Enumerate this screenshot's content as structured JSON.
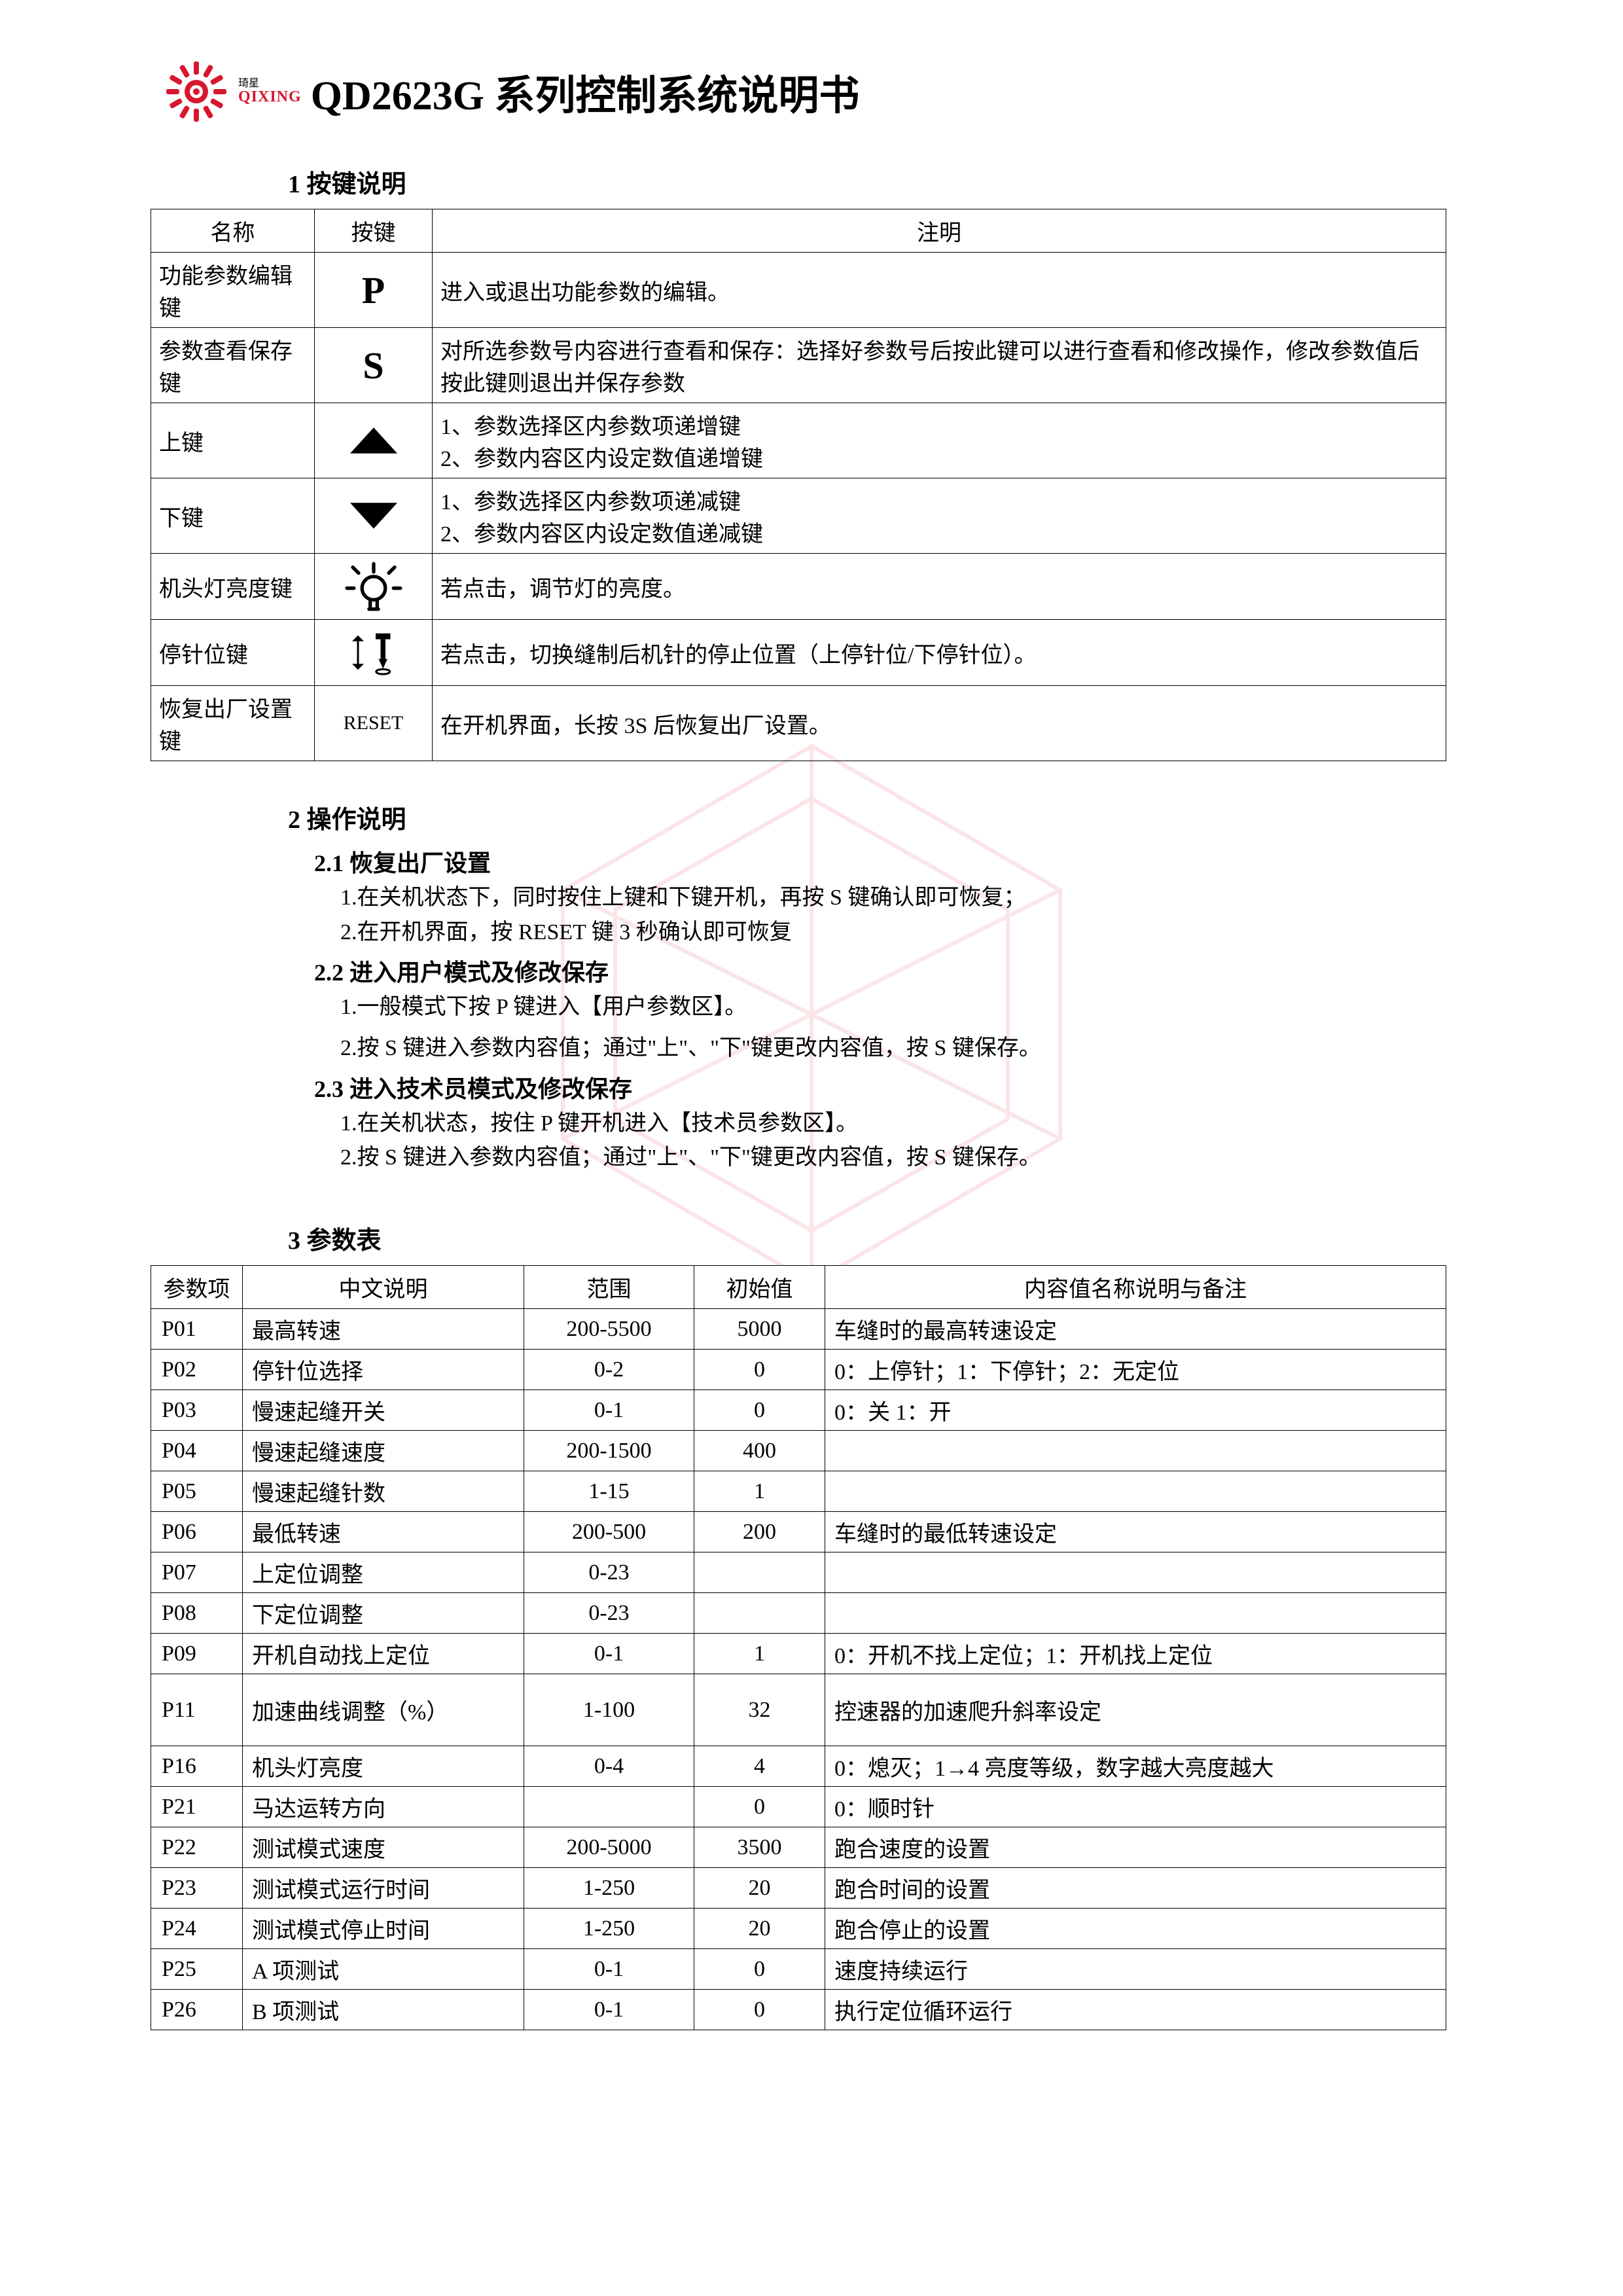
{
  "logo": {
    "cn": "琦星",
    "en": "QIXING",
    "color": "#d7172e"
  },
  "doc_title": "QD2623G 系列控制系统说明书",
  "section1": {
    "heading": "1 按键说明",
    "table": {
      "headers": [
        "名称",
        "按键",
        "注明"
      ],
      "rows": [
        {
          "name": "功能参数编辑键",
          "key_type": "glyph",
          "key": "P",
          "note": "进入或退出功能参数的编辑。"
        },
        {
          "name": "参数查看保存键",
          "key_type": "glyph",
          "key": "S",
          "note": "对所选参数号内容进行查看和保存：选择好参数号后按此键可以进行查看和修改操作，修改参数值后按此键则退出并保存参数"
        },
        {
          "name": "上键",
          "key_type": "svg-up",
          "note_lines": [
            "1、参数选择区内参数项递增键",
            "2、参数内容区内设定数值递增键"
          ]
        },
        {
          "name": "下键",
          "key_type": "svg-down",
          "note_lines": [
            "1、参数选择区内参数项递减键",
            "2、参数内容区内设定数值递减键"
          ]
        },
        {
          "name": "机头灯亮度键",
          "key_type": "svg-bulb",
          "note": "若点击，调节灯的亮度。"
        },
        {
          "name": "停针位键",
          "key_type": "svg-needle",
          "note": "若点击，切换缝制后机针的停止位置（上停针位/下停针位）。"
        },
        {
          "name": "恢复出厂设置键",
          "key_type": "reset",
          "key": "RESET",
          "note": "在开机界面，长按 3S 后恢复出厂设置。"
        }
      ]
    }
  },
  "section2": {
    "heading": "2 操作说明",
    "sub1": {
      "title": "2.1 恢复出厂设置",
      "items": [
        "1.在关机状态下，同时按住上键和下键开机，再按 S 键确认即可恢复；",
        "2.在开机界面，按 RESET 键 3 秒确认即可恢复"
      ]
    },
    "sub2": {
      "title": "2.2 进入用户模式及修改保存",
      "items": [
        "1.一般模式下按 P 键进入【用户参数区】。",
        "2.按 S 键进入参数内容值；通过\"上\"、\"下\"键更改内容值，按 S 键保存。"
      ]
    },
    "sub3": {
      "title": "2.3 进入技术员模式及修改保存",
      "items": [
        "1.在关机状态，按住 P 键开机进入【技术员参数区】。",
        "2.按 S 键进入参数内容值；通过\"上\"、\"下\"键更改内容值，按 S 键保存。"
      ]
    }
  },
  "section3": {
    "heading": "3 参数表",
    "headers": [
      "参数项",
      "中文说明",
      "范围",
      "初始值",
      "内容值名称说明与备注"
    ],
    "rows": [
      {
        "p": "P01",
        "desc": "最高转速",
        "range": "200-5500",
        "init": "5000",
        "note": "车缝时的最高转速设定"
      },
      {
        "p": "P02",
        "desc": "停针位选择",
        "range": "0-2",
        "init": "0",
        "note": "0：上停针；1：下停针；2：无定位"
      },
      {
        "p": "P03",
        "desc": "慢速起缝开关",
        "range": "0-1",
        "init": "0",
        "note": "0：关 1：开"
      },
      {
        "p": "P04",
        "desc": "慢速起缝速度",
        "range": "200-1500",
        "init": "400",
        "note": ""
      },
      {
        "p": "P05",
        "desc": "慢速起缝针数",
        "range": "1-15",
        "init": "1",
        "note": ""
      },
      {
        "p": "P06",
        "desc": "最低转速",
        "range": "200-500",
        "init": "200",
        "note": "车缝时的最低转速设定"
      },
      {
        "p": "P07",
        "desc": "上定位调整",
        "range": "0-23",
        "init": "",
        "note": ""
      },
      {
        "p": "P08",
        "desc": "下定位调整",
        "range": "0-23",
        "init": "",
        "note": ""
      },
      {
        "p": "P09",
        "desc": "开机自动找上定位",
        "range": "0-1",
        "init": "1",
        "note": "0：开机不找上定位；1：开机找上定位"
      },
      {
        "p": "P11",
        "desc": "加速曲线调整（%）",
        "range": "1-100",
        "init": "32",
        "note": "控速器的加速爬升斜率设定",
        "tall": true
      },
      {
        "p": "P16",
        "desc": "机头灯亮度",
        "range": "0-4",
        "init": "4",
        "note": "0：熄灭；1→4 亮度等级，数字越大亮度越大"
      },
      {
        "p": "P21",
        "desc": "马达运转方向",
        "range": "",
        "init": "0",
        "note": "0：顺时针"
      },
      {
        "p": "P22",
        "desc": "测试模式速度",
        "range": "200-5000",
        "init": "3500",
        "note": "跑合速度的设置"
      },
      {
        "p": "P23",
        "desc": "测试模式运行时间",
        "range": "1-250",
        "init": "20",
        "note": "跑合时间的设置"
      },
      {
        "p": "P24",
        "desc": "测试模式停止时间",
        "range": "1-250",
        "init": "20",
        "note": "跑合停止的设置"
      },
      {
        "p": "P25",
        "desc": "A 项测试",
        "range": "0-1",
        "init": "0",
        "note": "速度持续运行"
      },
      {
        "p": "P26",
        "desc": "B 项测试",
        "range": "0-1",
        "init": "0",
        "note": "执行定位循环运行"
      }
    ]
  }
}
